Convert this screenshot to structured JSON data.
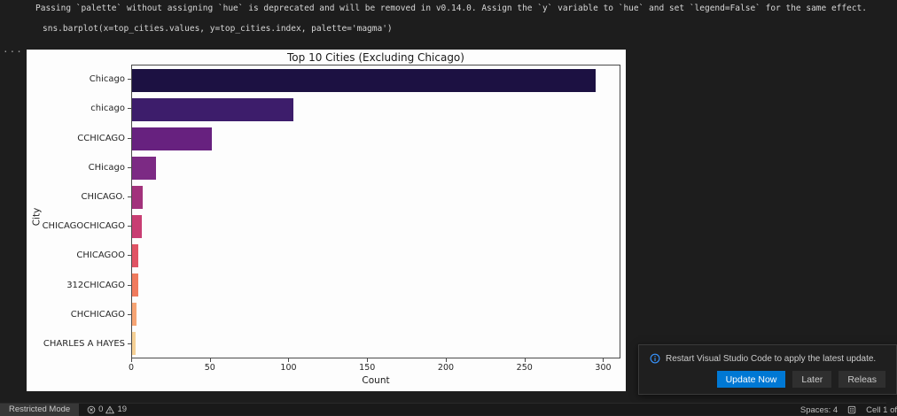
{
  "output": {
    "warning_text": "Passing `palette` without assigning `hue` is deprecated and will be removed in v0.14.0. Assign the `y` variable to `hue` and set `legend=False` for the same effect.",
    "code_line": "sns.barplot(x=top_cities.values, y=top_cities.index, palette='magma')",
    "ellipsis": "..."
  },
  "chart_data": {
    "type": "bar",
    "orientation": "horizontal",
    "title": "Top 10 Cities (Excluding Chicago)",
    "xlabel": "Count",
    "ylabel": "City",
    "categories": [
      "Chicago",
      "chicago",
      "CCHICAGO",
      "CHicago",
      "CHICAGO.",
      "CHICAGOCHICAGO",
      "CHICAGOO",
      "312CHICAGO",
      "CHCHICAGO",
      "CHARLES A HAYES"
    ],
    "values": [
      296,
      103,
      51,
      15,
      7,
      6,
      4,
      4,
      3,
      2
    ],
    "bar_colors": [
      "#1c1142",
      "#3d1d6b",
      "#67217f",
      "#7c2a84",
      "#a2327c",
      "#c83e73",
      "#e05465",
      "#f07b5e",
      "#f6a474",
      "#f5d095"
    ],
    "x_ticks": [
      0,
      50,
      100,
      150,
      200,
      250,
      300
    ],
    "xlim": [
      0,
      311
    ],
    "grid": false,
    "legend": "none",
    "palette": "magma"
  },
  "notification": {
    "message": "Restart Visual Studio Code to apply the latest update.",
    "buttons": [
      {
        "label": "Update Now"
      },
      {
        "label": "Later"
      },
      {
        "label": "Releas"
      }
    ]
  },
  "status_bar": {
    "restricted_mode": "Restricted Mode",
    "error_count": "0",
    "warning_count": "19",
    "spaces": "Spaces: 4",
    "cell_indicator": "Cell 1 of"
  },
  "colors": {
    "accent_blue": "#0078d4",
    "info_blue": "#3794ff",
    "chart_bg": "#fdfdfd",
    "editor_bg": "#1d1d1d",
    "statusbar_bg": "#191919"
  }
}
